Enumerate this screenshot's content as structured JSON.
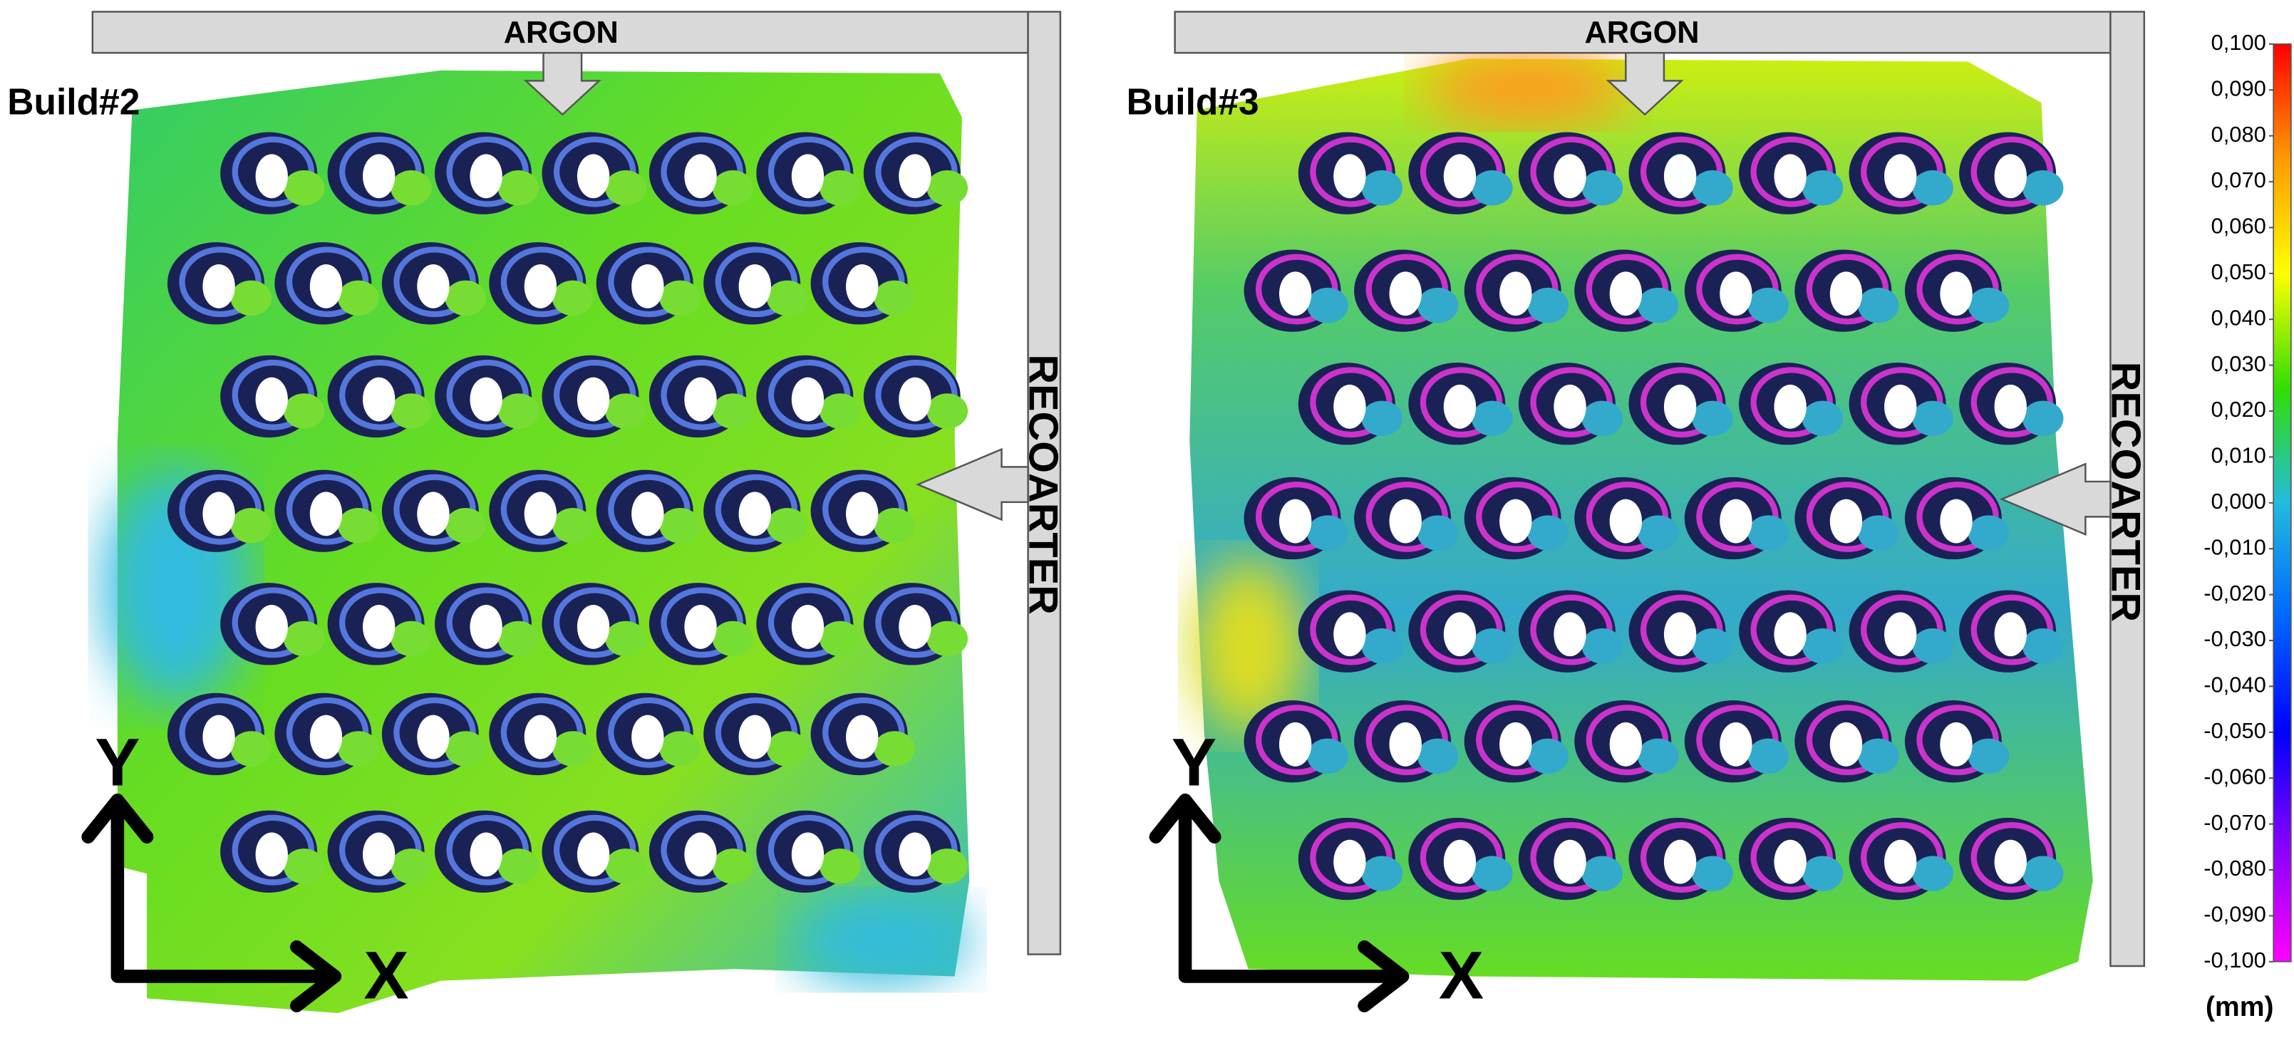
{
  "panels": [
    {
      "title": "Build#2",
      "argon": "ARGON",
      "recoater": "RECOARTER",
      "x_axis": "X",
      "y_axis": "Y"
    },
    {
      "title": "Build#3",
      "argon": "ARGON",
      "recoater": "RECOARTER",
      "x_axis": "X",
      "y_axis": "Y"
    }
  ],
  "colorbar": {
    "unit": "(mm)",
    "colors": [
      "#ff0000",
      "#ff9900",
      "#ffff00",
      "#33dd00",
      "#22bbdd",
      "#0066ff",
      "#0000ff",
      "#8800ff",
      "#ff00ff"
    ],
    "ticks": [
      {
        "value": 0.1,
        "label": "0,100"
      },
      {
        "value": 0.09,
        "label": "0,090"
      },
      {
        "value": 0.08,
        "label": "0,080"
      },
      {
        "value": 0.07,
        "label": "0,070"
      },
      {
        "value": 0.06,
        "label": "0,060"
      },
      {
        "value": 0.05,
        "label": "0,050"
      },
      {
        "value": 0.04,
        "label": "0,040"
      },
      {
        "value": 0.03,
        "label": "0,030"
      },
      {
        "value": 0.02,
        "label": "0,020"
      },
      {
        "value": 0.01,
        "label": "0,010"
      },
      {
        "value": 0,
        "label": "0,000"
      },
      {
        "value": -0.01,
        "label": "-0,010"
      },
      {
        "value": -0.02,
        "label": "-0,020"
      },
      {
        "value": -0.03,
        "label": "-0,030"
      },
      {
        "value": -0.04,
        "label": "-0,040"
      },
      {
        "value": -0.05,
        "label": "-0,050"
      },
      {
        "value": -0.06,
        "label": "-0,060"
      },
      {
        "value": -0.07,
        "label": "-0,070"
      },
      {
        "value": -0.08,
        "label": "-0,080"
      },
      {
        "value": -0.09,
        "label": "-0,090"
      },
      {
        "value": -0.1,
        "label": "-0,100"
      }
    ]
  }
}
